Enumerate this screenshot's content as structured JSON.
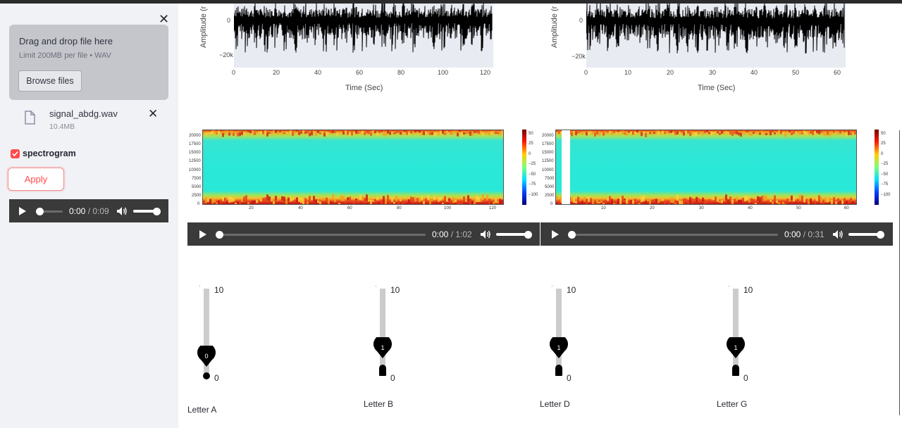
{
  "sidebar": {
    "uploader": {
      "drop_text": "Drag and drop file here",
      "limit_text": "Limit 200MB per file • WAV",
      "browse_label": "Browse files"
    },
    "file": {
      "name": "signal_abdg.wav",
      "size": "10.4MB"
    },
    "checkbox": {
      "label": "spectrogram",
      "checked": true
    },
    "apply_label": "Apply",
    "audio": {
      "current": "0:00",
      "duration": "/ 0:09"
    }
  },
  "plots": {
    "left": {
      "xlabel": "Time (Sec)",
      "ylabel": "Amplitude (r",
      "yticks": [
        "0",
        "−20k"
      ],
      "xticks": [
        "0",
        "20",
        "40",
        "60",
        "80",
        "100",
        "120"
      ]
    },
    "right": {
      "xlabel": "Time (Sec)",
      "ylabel": "Amplitude (r",
      "yticks": [
        "0",
        "−20k"
      ],
      "xticks": [
        "0",
        "10",
        "20",
        "30",
        "40",
        "50",
        "60"
      ]
    }
  },
  "spectrograms": {
    "yticks": [
      "20000",
      "17500",
      "15000",
      "12500",
      "10000",
      "7500",
      "5000",
      "2500",
      "0"
    ],
    "cbar_ticks": [
      "50",
      "25",
      "0",
      "−25",
      "−50",
      "−75",
      "−100"
    ],
    "left_xticks": [
      "20",
      "40",
      "60",
      "80",
      "100",
      "120"
    ],
    "right_xticks": [
      "10",
      "20",
      "30",
      "40",
      "50",
      "60"
    ]
  },
  "players": {
    "left": {
      "current": "0:00",
      "duration": "/ 1:02"
    },
    "right": {
      "current": "0:00",
      "duration": "/ 0:31"
    }
  },
  "sliders": [
    {
      "label": "Letter A",
      "value": "0",
      "max": "10",
      "min": "0"
    },
    {
      "label": "Letter B",
      "value": "1",
      "max": "10",
      "min": "0"
    },
    {
      "label": "Letter D",
      "value": "1",
      "max": "10",
      "min": "0"
    },
    {
      "label": "Letter G",
      "value": "1",
      "max": "10",
      "min": "0"
    }
  ]
}
